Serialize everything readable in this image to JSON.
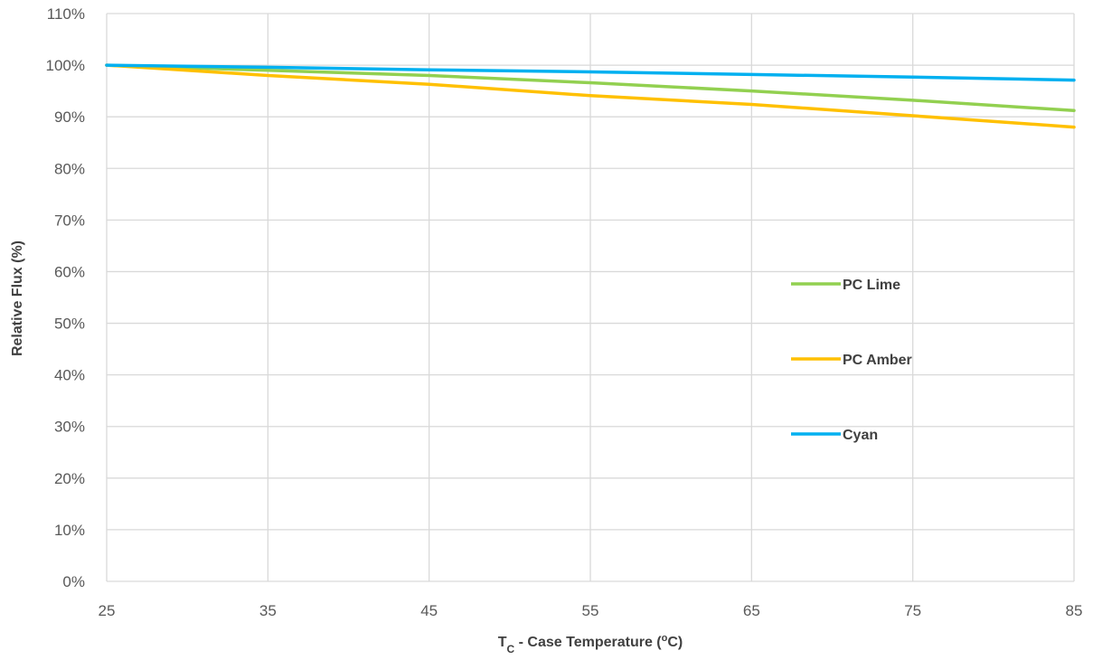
{
  "chart_data": {
    "type": "line",
    "xlabel": "T",
    "xlabel_sub": "C",
    "xlabel_rest": " - Case Temperature (",
    "xlabel_sup": "o",
    "xlabel_end": "C)",
    "ylabel": "Relative Flux (%)",
    "xlim": [
      25,
      85
    ],
    "ylim": [
      0,
      110
    ],
    "x_ticks": [
      "25",
      "35",
      "45",
      "55",
      "65",
      "75",
      "85"
    ],
    "y_ticks": [
      "0%",
      "10%",
      "20%",
      "30%",
      "40%",
      "50%",
      "60%",
      "70%",
      "80%",
      "90%",
      "100%",
      "110%"
    ],
    "grid": true,
    "legend_position": "center-right",
    "x": [
      25,
      35,
      45,
      55,
      65,
      75,
      85
    ],
    "series": [
      {
        "name": "PC Lime",
        "color": "#92d050",
        "values": [
          100,
          99.0,
          98.0,
          96.6,
          95.0,
          93.2,
          91.2
        ]
      },
      {
        "name": "PC Amber",
        "color": "#ffc000",
        "values": [
          100,
          98.0,
          96.3,
          94.1,
          92.4,
          90.2,
          88.0
        ]
      },
      {
        "name": "Cyan",
        "color": "#00b0f0",
        "values": [
          100,
          99.6,
          99.1,
          98.7,
          98.2,
          97.7,
          97.1
        ]
      }
    ]
  }
}
